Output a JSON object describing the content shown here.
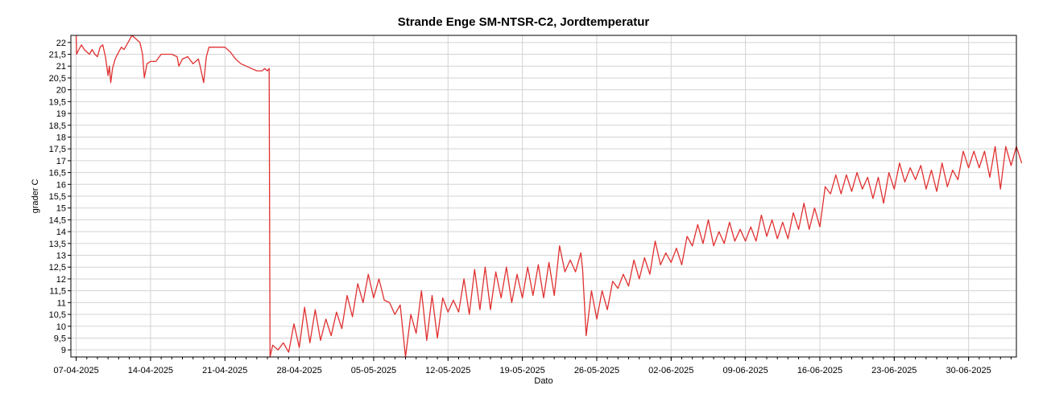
{
  "chart_data": {
    "type": "line",
    "title": "Strande Enge SM-NTSR-C2, Jordtemperatur",
    "xlabel": "Dato",
    "ylabel": "grader C",
    "grid": true,
    "ylim": [
      8.7,
      22.3
    ],
    "yticks": [
      "9",
      "9,5",
      "10",
      "10,5",
      "11",
      "11,5",
      "12",
      "12,5",
      "13",
      "13,5",
      "14",
      "14,5",
      "15",
      "15,5",
      "16",
      "16,5",
      "17",
      "17,5",
      "18",
      "18,5",
      "19",
      "19,5",
      "20",
      "20,5",
      "21",
      "21,5",
      "22"
    ],
    "xlim": [
      "2025-04-06T12:00",
      "2025-07-04T12:00"
    ],
    "xticks": [
      {
        "date": "2025-04-07",
        "label": "07-04-2025"
      },
      {
        "date": "2025-04-14",
        "label": "14-04-2025"
      },
      {
        "date": "2025-04-21",
        "label": "21-04-2025"
      },
      {
        "date": "2025-04-28",
        "label": "28-04-2025"
      },
      {
        "date": "2025-05-05",
        "label": "05-05-2025"
      },
      {
        "date": "2025-05-12",
        "label": "12-05-2025"
      },
      {
        "date": "2025-05-19",
        "label": "19-05-2025"
      },
      {
        "date": "2025-05-26",
        "label": "26-05-2025"
      },
      {
        "date": "2025-06-02",
        "label": "02-06-2025"
      },
      {
        "date": "2025-06-09",
        "label": "09-06-2025"
      },
      {
        "date": "2025-06-16",
        "label": "16-06-2025"
      },
      {
        "date": "2025-06-23",
        "label": "23-06-2025"
      },
      {
        "date": "2025-06-30",
        "label": "30-06-2025"
      }
    ],
    "series": [
      {
        "color": "#e03030",
        "points": [
          [
            "2025-04-07T00:00",
            22.3
          ],
          [
            "2025-04-07T01:00",
            21.5
          ],
          [
            "2025-04-07T06:00",
            21.7
          ],
          [
            "2025-04-07T12:00",
            21.9
          ],
          [
            "2025-04-07T18:00",
            21.7
          ],
          [
            "2025-04-08T00:00",
            21.6
          ],
          [
            "2025-04-08T06:00",
            21.5
          ],
          [
            "2025-04-08T12:00",
            21.7
          ],
          [
            "2025-04-08T18:00",
            21.5
          ],
          [
            "2025-04-09T00:00",
            21.4
          ],
          [
            "2025-04-09T06:00",
            21.8
          ],
          [
            "2025-04-09T12:00",
            21.9
          ],
          [
            "2025-04-09T18:00",
            21.4
          ],
          [
            "2025-04-10T00:00",
            20.6
          ],
          [
            "2025-04-10T03:00",
            21.0
          ],
          [
            "2025-04-10T06:00",
            20.3
          ],
          [
            "2025-04-10T10:00",
            20.9
          ],
          [
            "2025-04-10T16:00",
            21.3
          ],
          [
            "2025-04-11T00:00",
            21.6
          ],
          [
            "2025-04-11T06:00",
            21.8
          ],
          [
            "2025-04-11T12:00",
            21.7
          ],
          [
            "2025-04-12T00:00",
            22.1
          ],
          [
            "2025-04-12T06:00",
            22.3
          ],
          [
            "2025-04-12T12:00",
            22.2
          ],
          [
            "2025-04-13T00:00",
            22.0
          ],
          [
            "2025-04-13T06:00",
            21.5
          ],
          [
            "2025-04-13T10:00",
            20.5
          ],
          [
            "2025-04-13T16:00",
            21.1
          ],
          [
            "2025-04-14T00:00",
            21.2
          ],
          [
            "2025-04-14T12:00",
            21.2
          ],
          [
            "2025-04-15T00:00",
            21.5
          ],
          [
            "2025-04-15T12:00",
            21.5
          ],
          [
            "2025-04-16T00:00",
            21.5
          ],
          [
            "2025-04-16T12:00",
            21.4
          ],
          [
            "2025-04-16T16:00",
            21.0
          ],
          [
            "2025-04-17T00:00",
            21.3
          ],
          [
            "2025-04-17T12:00",
            21.4
          ],
          [
            "2025-04-18T00:00",
            21.1
          ],
          [
            "2025-04-18T12:00",
            21.3
          ],
          [
            "2025-04-18T16:00",
            21.0
          ],
          [
            "2025-04-19T00:00",
            20.3
          ],
          [
            "2025-04-19T06:00",
            21.4
          ],
          [
            "2025-04-19T12:00",
            21.8
          ],
          [
            "2025-04-20T00:00",
            21.8
          ],
          [
            "2025-04-21T00:00",
            21.8
          ],
          [
            "2025-04-21T12:00",
            21.6
          ],
          [
            "2025-04-22T00:00",
            21.3
          ],
          [
            "2025-04-22T12:00",
            21.1
          ],
          [
            "2025-04-23T00:00",
            21.0
          ],
          [
            "2025-04-23T12:00",
            20.9
          ],
          [
            "2025-04-24T00:00",
            20.8
          ],
          [
            "2025-04-24T12:00",
            20.8
          ],
          [
            "2025-04-24T18:00",
            20.9
          ],
          [
            "2025-04-25T00:00",
            20.8
          ],
          [
            "2025-04-25T04:00",
            20.9
          ],
          [
            "2025-04-25T06:00",
            8.7
          ],
          [
            "2025-04-25T12:00",
            9.2
          ],
          [
            "2025-04-26T00:00",
            9.0
          ],
          [
            "2025-04-26T12:00",
            9.3
          ],
          [
            "2025-04-27T00:00",
            8.9
          ],
          [
            "2025-04-27T12:00",
            10.1
          ],
          [
            "2025-04-28T00:00",
            9.1
          ],
          [
            "2025-04-28T12:00",
            10.8
          ],
          [
            "2025-04-29T00:00",
            9.3
          ],
          [
            "2025-04-29T12:00",
            10.7
          ],
          [
            "2025-04-30T00:00",
            9.4
          ],
          [
            "2025-04-30T12:00",
            10.3
          ],
          [
            "2025-05-01T00:00",
            9.6
          ],
          [
            "2025-05-01T12:00",
            10.6
          ],
          [
            "2025-05-02T00:00",
            9.9
          ],
          [
            "2025-05-02T12:00",
            11.3
          ],
          [
            "2025-05-03T00:00",
            10.4
          ],
          [
            "2025-05-03T12:00",
            11.8
          ],
          [
            "2025-05-04T00:00",
            11.0
          ],
          [
            "2025-05-04T12:00",
            12.2
          ],
          [
            "2025-05-05T00:00",
            11.2
          ],
          [
            "2025-05-05T12:00",
            12.0
          ],
          [
            "2025-05-06T00:00",
            11.1
          ],
          [
            "2025-05-06T12:00",
            11.0
          ],
          [
            "2025-05-07T00:00",
            10.5
          ],
          [
            "2025-05-07T12:00",
            10.9
          ],
          [
            "2025-05-08T00:00",
            8.6
          ],
          [
            "2025-05-08T12:00",
            10.5
          ],
          [
            "2025-05-09T00:00",
            9.7
          ],
          [
            "2025-05-09T12:00",
            11.5
          ],
          [
            "2025-05-10T00:00",
            9.4
          ],
          [
            "2025-05-10T12:00",
            11.3
          ],
          [
            "2025-05-11T00:00",
            9.5
          ],
          [
            "2025-05-11T12:00",
            11.2
          ],
          [
            "2025-05-12T00:00",
            10.6
          ],
          [
            "2025-05-12T12:00",
            11.1
          ],
          [
            "2025-05-13T00:00",
            10.6
          ],
          [
            "2025-05-13T12:00",
            12.0
          ],
          [
            "2025-05-14T00:00",
            10.5
          ],
          [
            "2025-05-14T12:00",
            12.4
          ],
          [
            "2025-05-15T00:00",
            10.7
          ],
          [
            "2025-05-15T12:00",
            12.5
          ],
          [
            "2025-05-16T00:00",
            10.7
          ],
          [
            "2025-05-16T12:00",
            12.3
          ],
          [
            "2025-05-17T00:00",
            11.2
          ],
          [
            "2025-05-17T12:00",
            12.5
          ],
          [
            "2025-05-18T00:00",
            11.0
          ],
          [
            "2025-05-18T12:00",
            12.2
          ],
          [
            "2025-05-19T00:00",
            11.2
          ],
          [
            "2025-05-19T12:00",
            12.5
          ],
          [
            "2025-05-20T00:00",
            11.3
          ],
          [
            "2025-05-20T12:00",
            12.6
          ],
          [
            "2025-05-21T00:00",
            11.2
          ],
          [
            "2025-05-21T12:00",
            12.7
          ],
          [
            "2025-05-22T00:00",
            11.3
          ],
          [
            "2025-05-22T12:00",
            13.4
          ],
          [
            "2025-05-23T00:00",
            12.3
          ],
          [
            "2025-05-23T12:00",
            12.8
          ],
          [
            "2025-05-24T00:00",
            12.3
          ],
          [
            "2025-05-24T12:00",
            13.1
          ],
          [
            "2025-05-24T16:00",
            12.4
          ],
          [
            "2025-05-25T00:00",
            9.6
          ],
          [
            "2025-05-25T12:00",
            11.5
          ],
          [
            "2025-05-26T00:00",
            10.3
          ],
          [
            "2025-05-26T12:00",
            11.5
          ],
          [
            "2025-05-27T00:00",
            10.7
          ],
          [
            "2025-05-27T12:00",
            11.9
          ],
          [
            "2025-05-28T00:00",
            11.6
          ],
          [
            "2025-05-28T12:00",
            12.2
          ],
          [
            "2025-05-29T00:00",
            11.7
          ],
          [
            "2025-05-29T12:00",
            12.8
          ],
          [
            "2025-05-30T00:00",
            12.0
          ],
          [
            "2025-05-30T12:00",
            12.9
          ],
          [
            "2025-05-31T00:00",
            12.2
          ],
          [
            "2025-05-31T12:00",
            13.6
          ],
          [
            "2025-06-01T00:00",
            12.6
          ],
          [
            "2025-06-01T12:00",
            13.1
          ],
          [
            "2025-06-02T00:00",
            12.7
          ],
          [
            "2025-06-02T12:00",
            13.3
          ],
          [
            "2025-06-03T00:00",
            12.6
          ],
          [
            "2025-06-03T12:00",
            13.8
          ],
          [
            "2025-06-04T00:00",
            13.4
          ],
          [
            "2025-06-04T12:00",
            14.3
          ],
          [
            "2025-06-05T00:00",
            13.5
          ],
          [
            "2025-06-05T12:00",
            14.5
          ],
          [
            "2025-06-06T00:00",
            13.4
          ],
          [
            "2025-06-06T12:00",
            14.0
          ],
          [
            "2025-06-07T00:00",
            13.5
          ],
          [
            "2025-06-07T12:00",
            14.4
          ],
          [
            "2025-06-08T00:00",
            13.6
          ],
          [
            "2025-06-08T12:00",
            14.1
          ],
          [
            "2025-06-09T00:00",
            13.6
          ],
          [
            "2025-06-09T12:00",
            14.2
          ],
          [
            "2025-06-10T00:00",
            13.6
          ],
          [
            "2025-06-10T12:00",
            14.7
          ],
          [
            "2025-06-11T00:00",
            13.8
          ],
          [
            "2025-06-11T12:00",
            14.5
          ],
          [
            "2025-06-12T00:00",
            13.7
          ],
          [
            "2025-06-12T12:00",
            14.4
          ],
          [
            "2025-06-13T00:00",
            13.7
          ],
          [
            "2025-06-13T12:00",
            14.8
          ],
          [
            "2025-06-14T00:00",
            14.1
          ],
          [
            "2025-06-14T12:00",
            15.2
          ],
          [
            "2025-06-15T00:00",
            14.1
          ],
          [
            "2025-06-15T12:00",
            15.0
          ],
          [
            "2025-06-16T00:00",
            14.2
          ],
          [
            "2025-06-16T12:00",
            15.9
          ],
          [
            "2025-06-17T00:00",
            15.6
          ],
          [
            "2025-06-17T12:00",
            16.4
          ],
          [
            "2025-06-18T00:00",
            15.6
          ],
          [
            "2025-06-18T12:00",
            16.4
          ],
          [
            "2025-06-19T00:00",
            15.7
          ],
          [
            "2025-06-19T12:00",
            16.5
          ],
          [
            "2025-06-20T00:00",
            15.8
          ],
          [
            "2025-06-20T12:00",
            16.3
          ],
          [
            "2025-06-21T00:00",
            15.4
          ],
          [
            "2025-06-21T12:00",
            16.3
          ],
          [
            "2025-06-22T00:00",
            15.2
          ],
          [
            "2025-06-22T12:00",
            16.5
          ],
          [
            "2025-06-23T00:00",
            15.8
          ],
          [
            "2025-06-23T12:00",
            16.9
          ],
          [
            "2025-06-24T00:00",
            16.1
          ],
          [
            "2025-06-24T12:00",
            16.7
          ],
          [
            "2025-06-25T00:00",
            16.2
          ],
          [
            "2025-06-25T12:00",
            16.8
          ],
          [
            "2025-06-26T00:00",
            15.8
          ],
          [
            "2025-06-26T12:00",
            16.6
          ],
          [
            "2025-06-27T00:00",
            15.7
          ],
          [
            "2025-06-27T12:00",
            16.9
          ],
          [
            "2025-06-28T00:00",
            15.9
          ],
          [
            "2025-06-28T12:00",
            16.6
          ],
          [
            "2025-06-29T00:00",
            16.2
          ],
          [
            "2025-06-29T12:00",
            17.4
          ],
          [
            "2025-06-30T00:00",
            16.7
          ],
          [
            "2025-06-30T12:00",
            17.4
          ],
          [
            "2025-07-01T00:00",
            16.7
          ],
          [
            "2025-07-01T12:00",
            17.4
          ],
          [
            "2025-07-02T00:00",
            16.3
          ],
          [
            "2025-07-02T12:00",
            17.6
          ],
          [
            "2025-07-03T00:00",
            15.8
          ],
          [
            "2025-07-03T12:00",
            17.6
          ],
          [
            "2025-07-04T00:00",
            16.8
          ],
          [
            "2025-07-04T12:00",
            17.6
          ],
          [
            "2025-07-05T00:00",
            16.9
          ]
        ]
      }
    ]
  }
}
